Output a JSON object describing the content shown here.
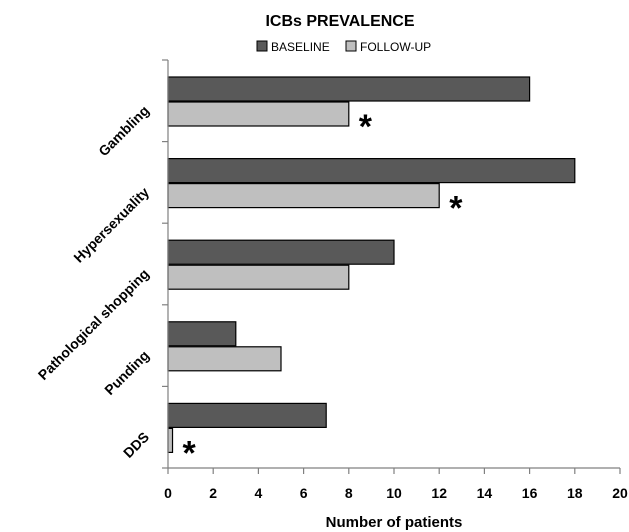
{
  "chart_data": {
    "type": "bar",
    "orientation": "horizontal",
    "title": "ICBs PREVALENCE",
    "xlabel": "Number of patients",
    "ylabel": "",
    "xlim": [
      0,
      20
    ],
    "x_ticks": [
      0,
      2,
      4,
      6,
      8,
      10,
      12,
      14,
      16,
      18,
      20
    ],
    "categories": [
      "Gambling",
      "Hypersexuality",
      "Pathological shopping",
      "Punding",
      "DDS"
    ],
    "series": [
      {
        "name": "BASELINE",
        "color": "#595959",
        "values": [
          16,
          18,
          10,
          3,
          7
        ]
      },
      {
        "name": "FOLLOW-UP",
        "color": "#bfbfbf",
        "values": [
          8,
          12,
          8,
          5,
          0.2
        ]
      }
    ],
    "annotations": [
      {
        "category": "Gambling",
        "series": "FOLLOW-UP",
        "text": "*"
      },
      {
        "category": "Hypersexuality",
        "series": "FOLLOW-UP",
        "text": "*"
      },
      {
        "category": "DDS",
        "series": "FOLLOW-UP",
        "text": "*"
      }
    ],
    "legend_position": "top",
    "grid": false
  }
}
